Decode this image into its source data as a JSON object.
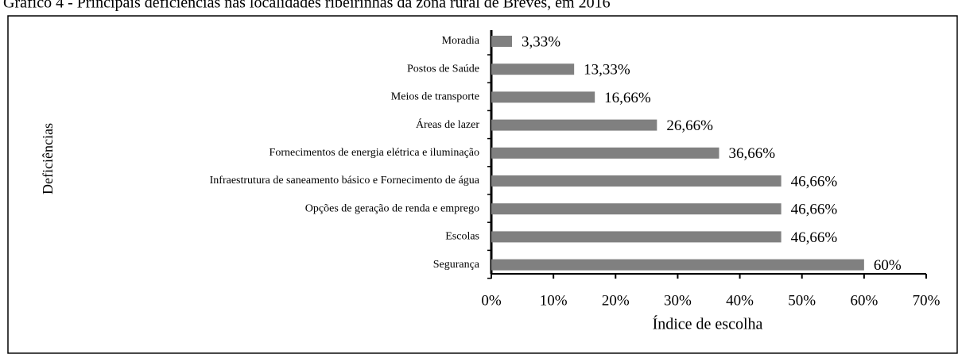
{
  "chart_data": {
    "type": "bar",
    "orientation": "horizontal",
    "title": "Gráfico 4 - Principais deficiências nas localidades ribeirinhas da zona rural de Breves, em 2016",
    "x_label": "Índice de escolha",
    "y_label": "Deficiências",
    "categories": [
      "Moradia",
      "Postos de Saúde",
      "Meios de transporte",
      "Áreas de lazer",
      "Fornecimentos de energia elétrica e iluminação",
      "Infraestrutura de saneamento básico e Fornecimento de água",
      "Opções de geração de renda e emprego",
      "Escolas",
      "Segurança"
    ],
    "values": [
      3.33,
      13.33,
      16.66,
      26.66,
      36.66,
      46.66,
      46.66,
      46.66,
      60
    ],
    "value_labels": [
      "3,33%",
      "13,33%",
      "16,66%",
      "26,66%",
      "36,66%",
      "46,66%",
      "46,66%",
      "46,66%",
      "60%"
    ],
    "color": "#808080",
    "xlim": [
      0,
      70
    ],
    "xticks": [
      {
        "value": 0,
        "label": "0%"
      },
      {
        "value": 10,
        "label": "10%"
      },
      {
        "value": 20,
        "label": "20%"
      },
      {
        "value": 30,
        "label": "30%"
      },
      {
        "value": 40,
        "label": "40%"
      },
      {
        "value": 50,
        "label": "50%"
      },
      {
        "value": 60,
        "label": "60%"
      },
      {
        "value": 70,
        "label": "70%"
      }
    ],
    "grid": false
  }
}
